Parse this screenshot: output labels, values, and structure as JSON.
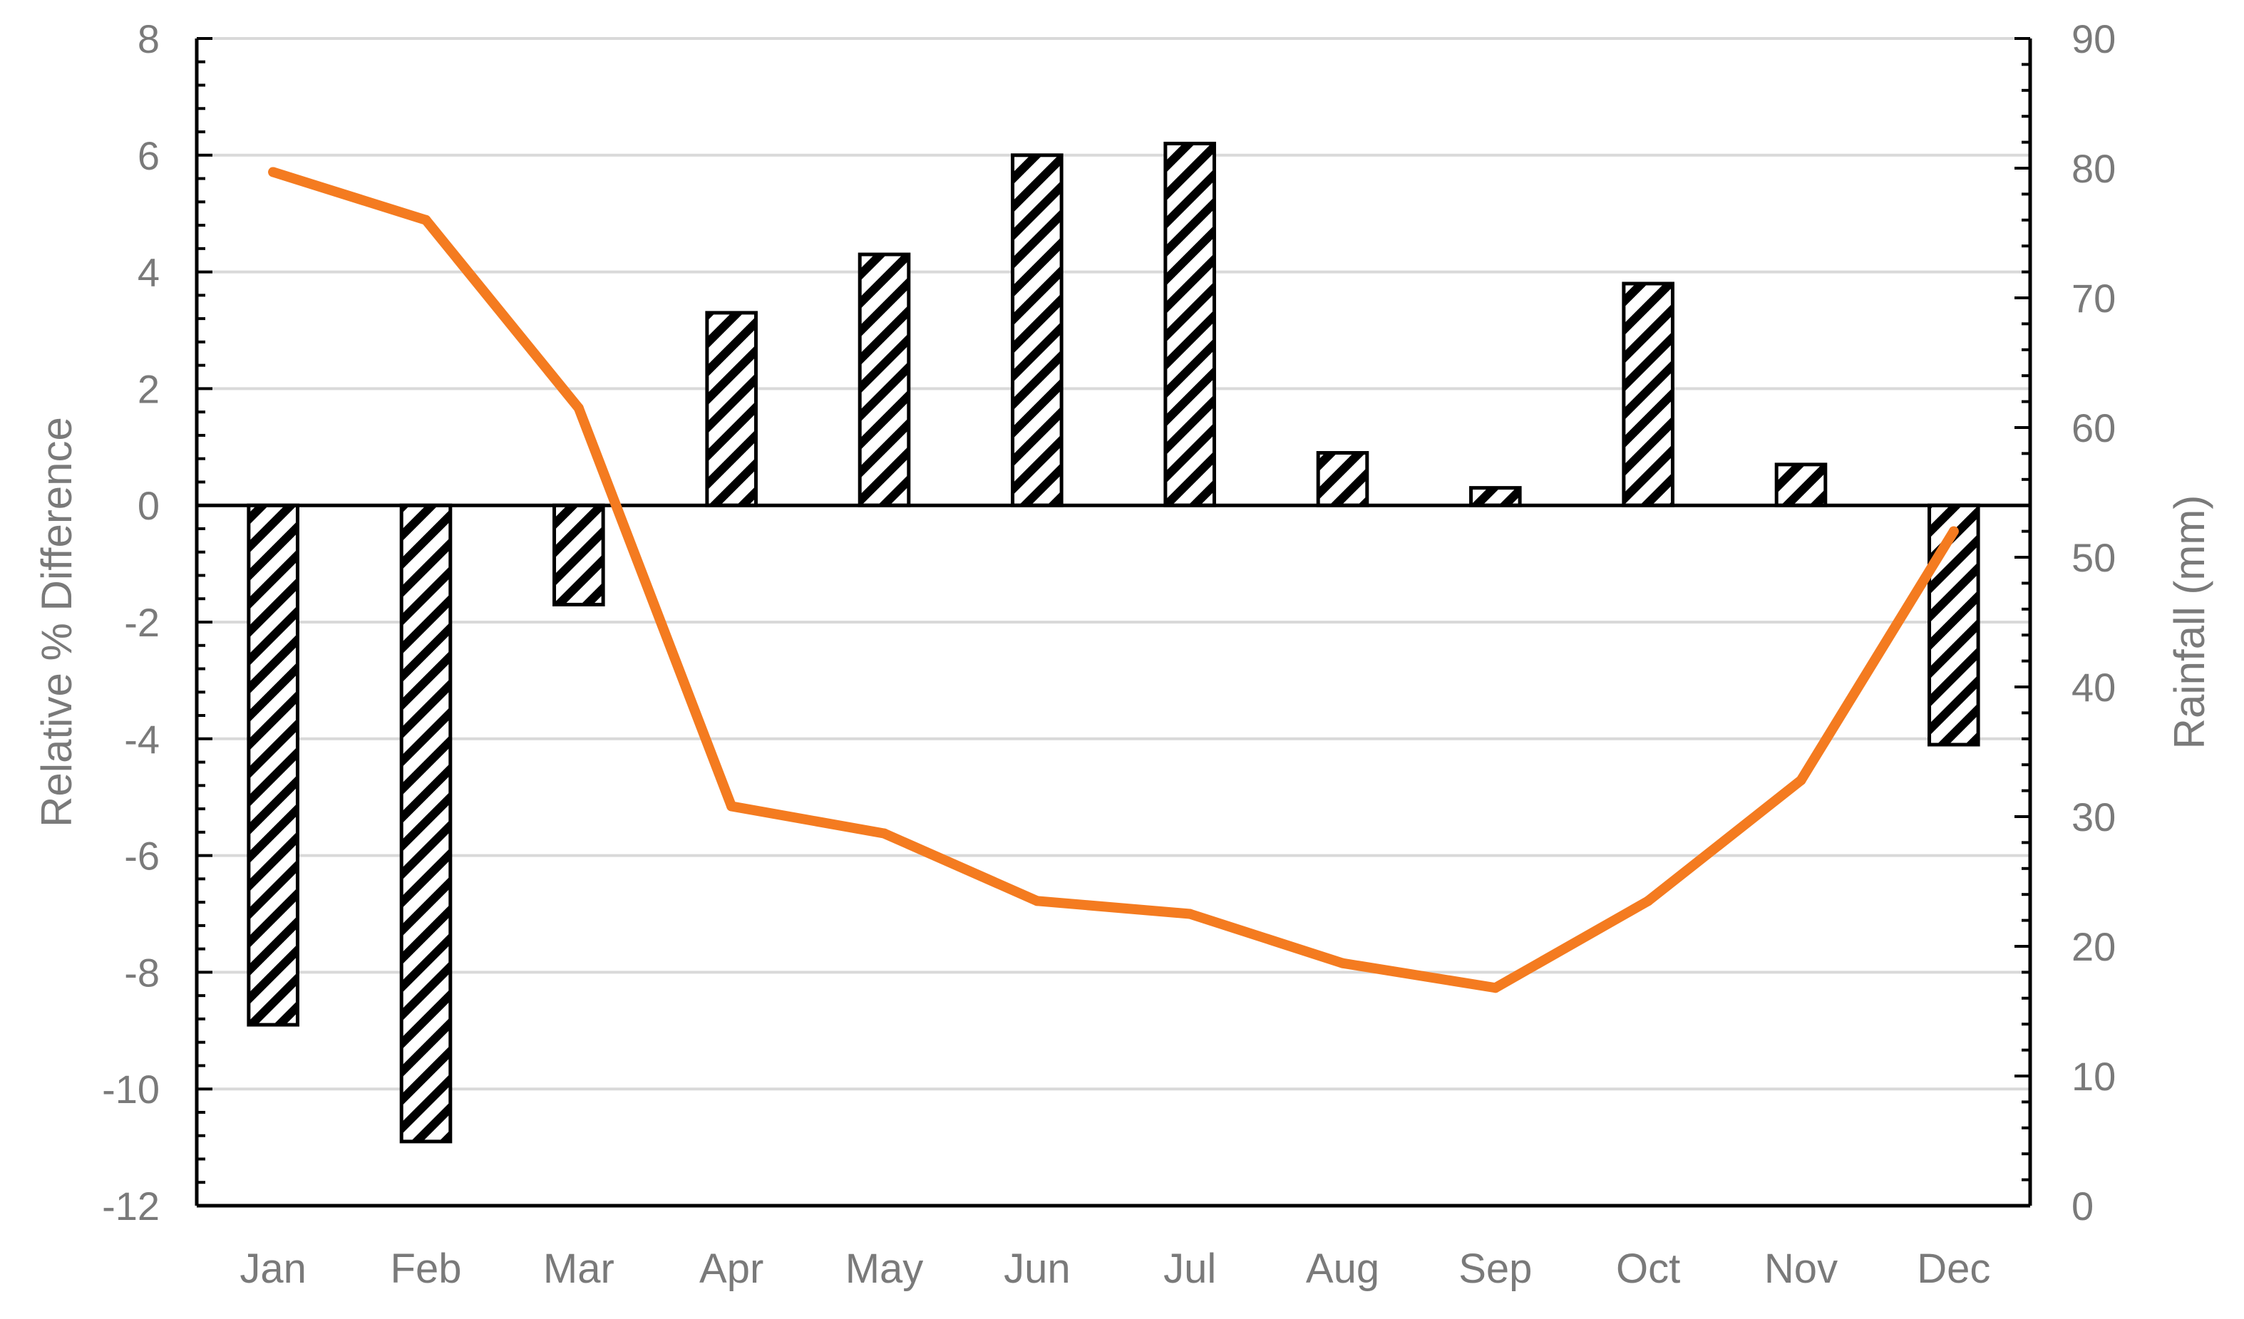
{
  "chart_data": {
    "type": "bar",
    "categories": [
      "Jan",
      "Feb",
      "Mar",
      "Apr",
      "May",
      "Jun",
      "Jul",
      "Aug",
      "Sep",
      "Oct",
      "Nov",
      "Dec"
    ],
    "series": [
      {
        "axis": "left",
        "type": "bar",
        "pattern": "diagonal-hatch",
        "values": [
          -8.9,
          -10.9,
          -1.7,
          3.3,
          4.3,
          6.0,
          6.2,
          0.9,
          0.3,
          3.8,
          0.7,
          -4.1
        ]
      },
      {
        "axis": "right",
        "type": "line",
        "color": "#f47b20",
        "values": [
          79.7,
          76.0,
          61.5,
          30.8,
          28.7,
          23.5,
          22.5,
          18.7,
          16.8,
          23.5,
          32.8,
          52.0
        ]
      }
    ],
    "ylabel": "Relative % Difference",
    "ylabel_right": "Rainfall (mm)",
    "ylim": [
      -12,
      8
    ],
    "ylim_right": [
      0,
      90
    ],
    "yticks": [
      "8",
      "6",
      "4",
      "2",
      "0",
      "-2",
      "-4",
      "-6",
      "-8",
      "-10",
      "-12"
    ],
    "yticks_right": [
      "90",
      "80",
      "70",
      "60",
      "50",
      "40",
      "30",
      "20",
      "10",
      "0"
    ],
    "grid": true,
    "legend": false
  }
}
